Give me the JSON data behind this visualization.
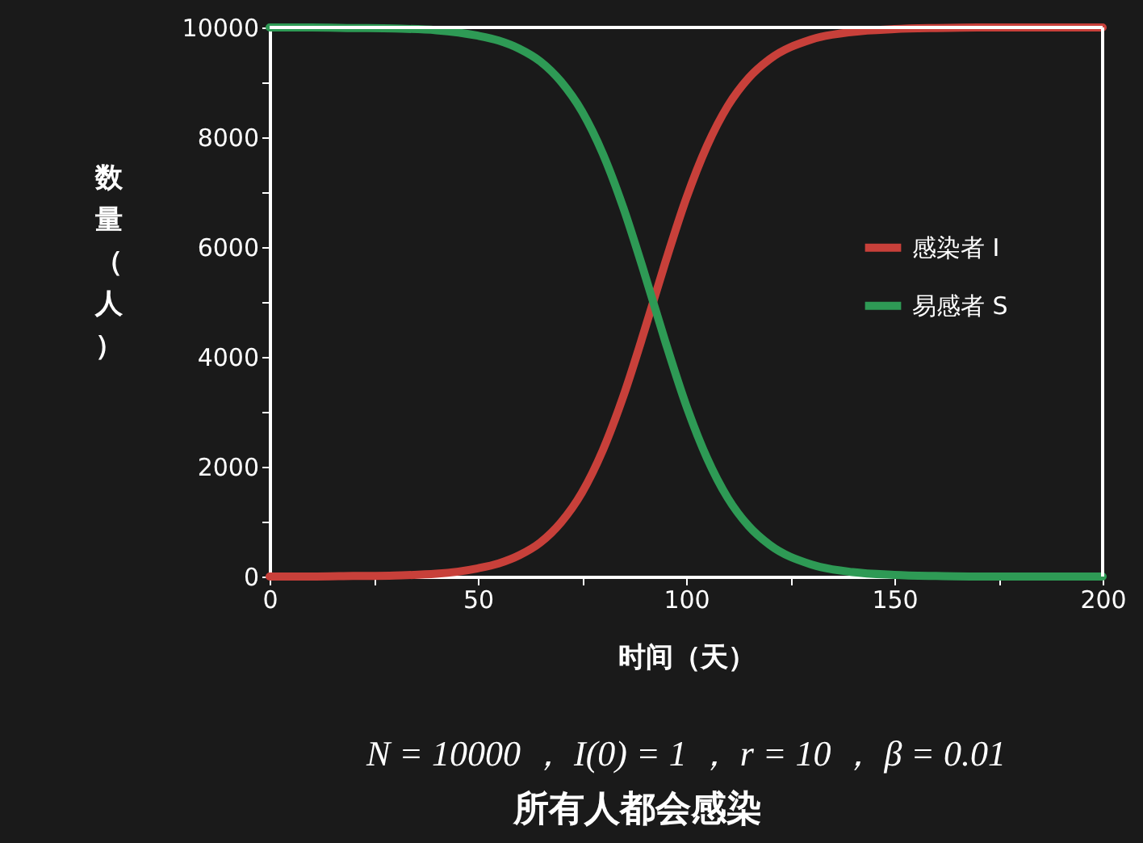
{
  "chart_data": {
    "type": "line",
    "xlabel": "时间（天）",
    "ylabel": "数量（人）",
    "x": [
      0,
      10,
      20,
      30,
      40,
      50,
      55,
      60,
      65,
      70,
      75,
      80,
      85,
      90,
      95,
      100,
      105,
      110,
      115,
      120,
      130,
      140,
      150,
      160,
      170,
      180,
      190,
      200
    ],
    "series": [
      {
        "name": "感染者 I",
        "color": "#c8403a",
        "values": [
          0,
          0,
          10,
          20,
          50,
          150,
          240,
          390,
          620,
          990,
          1530,
          2300,
          3300,
          4480,
          5720,
          6880,
          7840,
          8570,
          9080,
          9420,
          9780,
          9920,
          9970,
          9990,
          10000,
          10000,
          10000,
          10000
        ]
      },
      {
        "name": "易感者 S",
        "color": "#2e9a55",
        "values": [
          10000,
          10000,
          9990,
          9980,
          9950,
          9850,
          9760,
          9610,
          9380,
          9010,
          8470,
          7700,
          6700,
          5520,
          4280,
          3120,
          2160,
          1430,
          920,
          580,
          220,
          80,
          30,
          10,
          0,
          0,
          0,
          0
        ]
      }
    ],
    "xlim": [
      0,
      200
    ],
    "ylim": [
      0,
      10000
    ],
    "xticks": [
      0,
      {
        "value": 25,
        "label": null
      },
      50,
      {
        "value": 75,
        "label": null
      },
      100,
      {
        "value": 125,
        "label": null
      },
      150,
      {
        "value": 175,
        "label": null
      },
      200
    ],
    "yticks": [
      0,
      {
        "value": 1000,
        "label": null
      },
      2000,
      {
        "value": 3000,
        "label": null
      },
      4000,
      {
        "value": 5000,
        "label": null
      },
      6000,
      {
        "value": 7000,
        "label": null
      },
      8000,
      {
        "value": 9000,
        "label": null
      },
      10000
    ],
    "legend": "right",
    "grid": false,
    "marker": "none",
    "line_style": "solid",
    "annotations": [
      "N = 10000 ， I(0) = 1 ， r = 10 ， β = 0.01",
      "所有人都会感染"
    ]
  }
}
